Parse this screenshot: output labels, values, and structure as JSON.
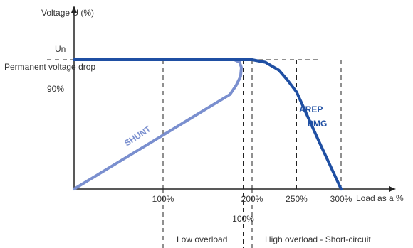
{
  "chart_data": {
    "type": "line",
    "ylabel": "Voltage U (%)",
    "xlabel": "Load as a %",
    "y_labels": {
      "un": "Un",
      "permanent_drop": "Permanent voltage drop",
      "ninety": "90%"
    },
    "x_ticks": [
      {
        "value": 100,
        "label": "100%"
      },
      {
        "value": 200,
        "label": "200%"
      },
      {
        "value": 250,
        "label": "250%"
      },
      {
        "value": 300,
        "label": "300%"
      }
    ],
    "extra_tick": {
      "value": 190,
      "label": "100%"
    },
    "regions": {
      "low": "Low overload",
      "high": "High overload - Short-circuit"
    },
    "series": [
      {
        "name": "AREP PMG",
        "name_lines": [
          "AREP",
          "PMG"
        ],
        "color": "#1f4fa3",
        "points": [
          [
            0,
            100
          ],
          [
            200,
            100
          ],
          [
            215,
            98
          ],
          [
            230,
            92
          ],
          [
            240,
            84
          ],
          [
            250,
            75
          ],
          [
            275,
            37
          ],
          [
            300,
            0
          ]
        ]
      },
      {
        "name": "SHUNT",
        "color": "#7a8fcf",
        "points": [
          [
            0,
            0
          ],
          [
            175,
            73
          ],
          [
            182,
            80
          ],
          [
            187,
            87
          ],
          [
            188,
            94
          ],
          [
            186,
            98
          ],
          [
            180,
            100
          ],
          [
            0,
            100
          ]
        ]
      }
    ],
    "xlim": [
      0,
      340
    ],
    "ylim": [
      0,
      100
    ]
  }
}
